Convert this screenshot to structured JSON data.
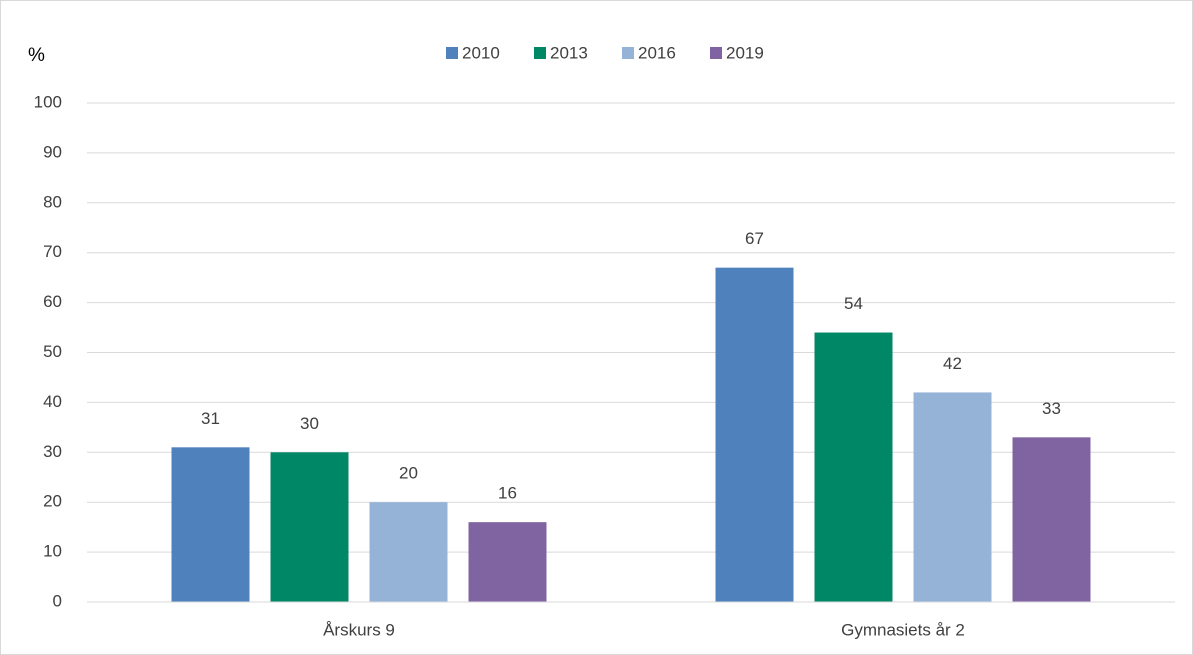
{
  "chart_data": {
    "type": "bar",
    "ylabel": "%",
    "categories": [
      "Årskurs 9",
      "Gymnasiets år 2"
    ],
    "series": [
      {
        "name": "2010",
        "color": "#4f81bd",
        "values": [
          31,
          67
        ]
      },
      {
        "name": "2013",
        "color": "#008766",
        "values": [
          30,
          54
        ]
      },
      {
        "name": "2016",
        "color": "#95b3d7",
        "values": [
          20,
          42
        ]
      },
      {
        "name": "2019",
        "color": "#8064a2",
        "values": [
          16,
          33
        ]
      }
    ],
    "ylim": [
      0,
      100
    ],
    "yticks": [
      0,
      10,
      20,
      30,
      40,
      50,
      60,
      70,
      80,
      90,
      100
    ],
    "grid": true,
    "legend": "top"
  }
}
